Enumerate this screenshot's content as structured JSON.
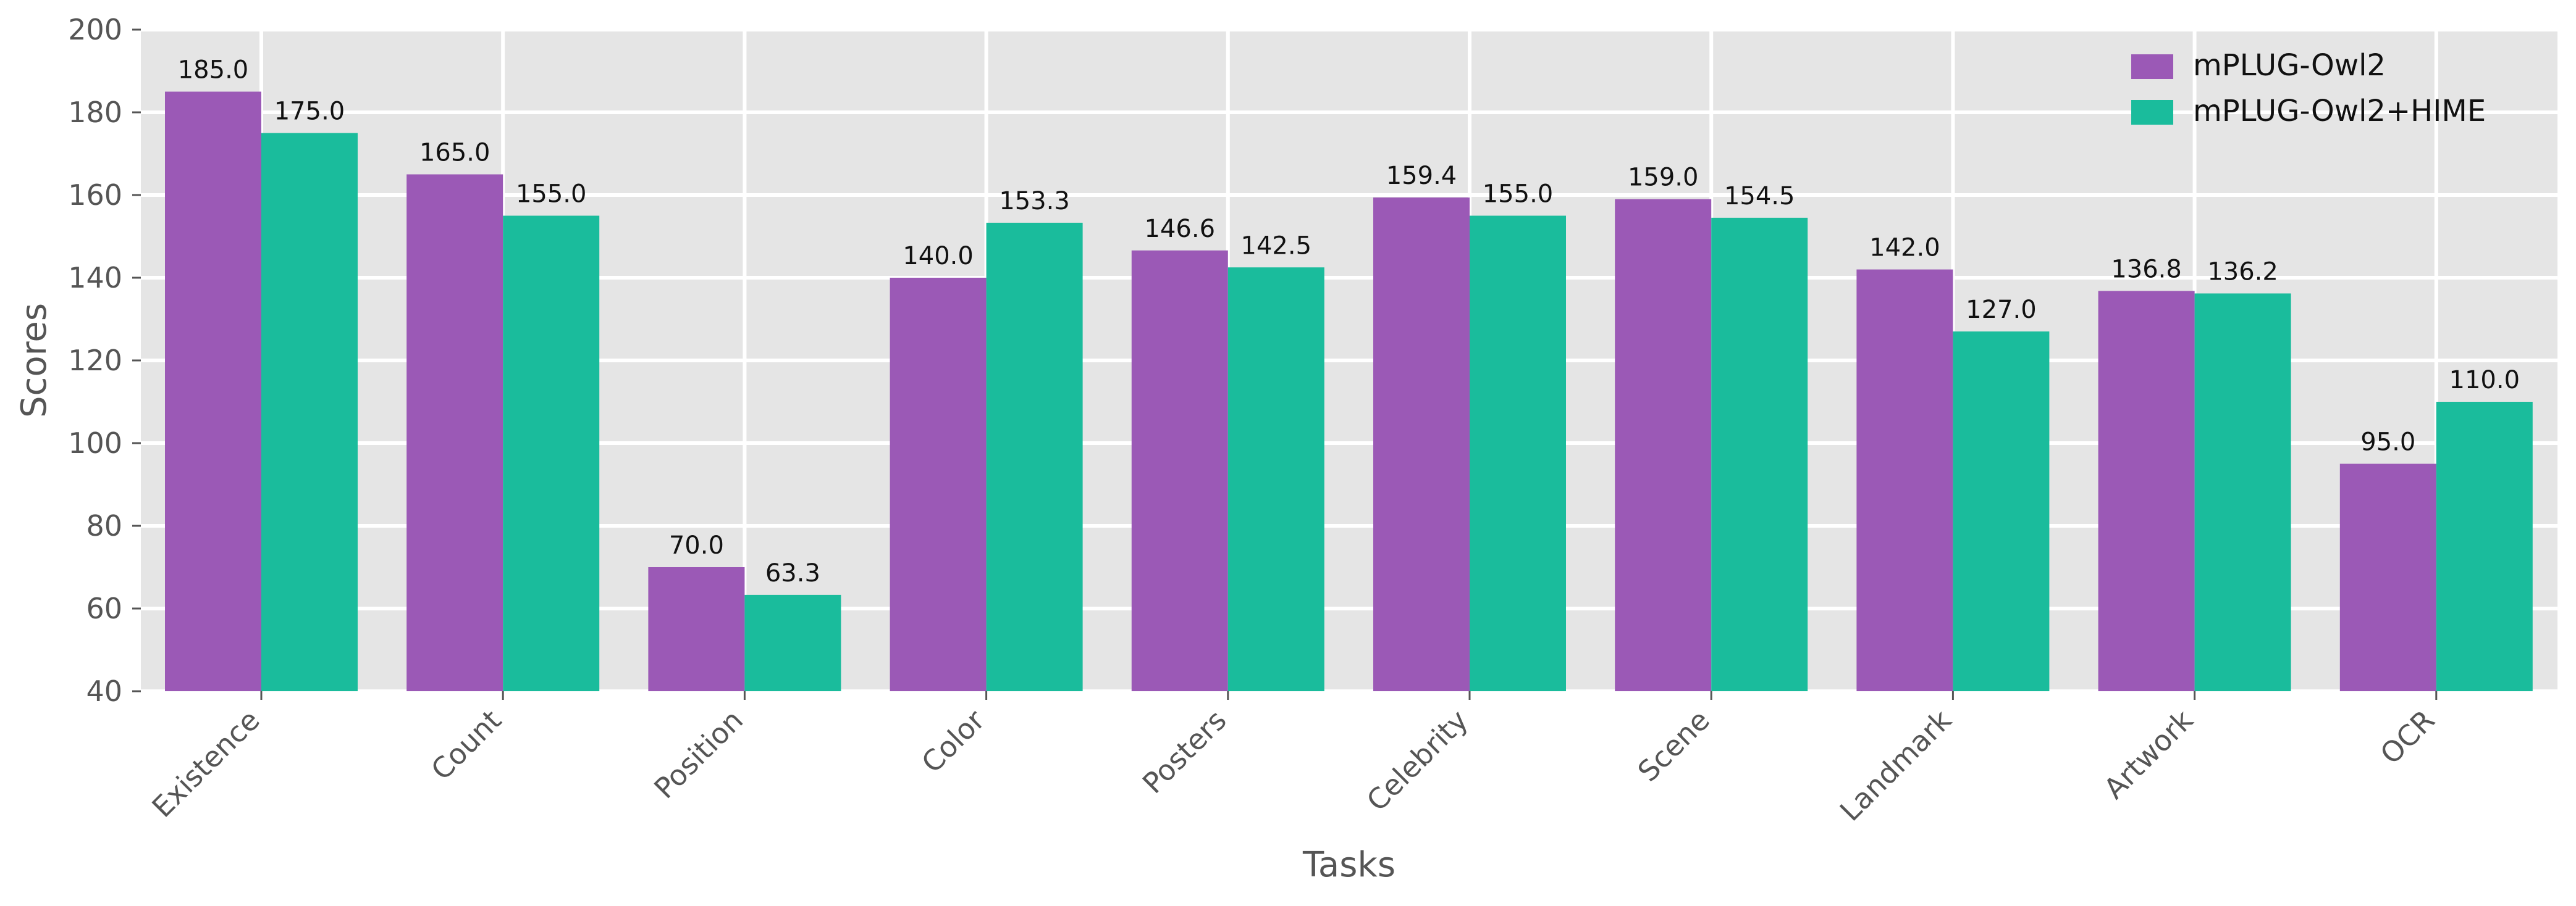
{
  "chart_data": {
    "type": "bar",
    "title": "",
    "xlabel": "Tasks",
    "ylabel": "Scores",
    "ylim": [
      40,
      200
    ],
    "yticks": [
      40,
      60,
      80,
      100,
      120,
      140,
      160,
      180,
      200
    ],
    "grid": true,
    "legend_position": "top-right",
    "categories": [
      "Existence",
      "Count",
      "Position",
      "Color",
      "Posters",
      "Celebrity",
      "Scene",
      "Landmark",
      "Artwork",
      "OCR"
    ],
    "series": [
      {
        "name": "mPLUG-Owl2",
        "color": "#9b59b6",
        "values": [
          185.0,
          165.0,
          70.0,
          140.0,
          146.6,
          159.4,
          159.0,
          142.0,
          136.8,
          95.0
        ]
      },
      {
        "name": "mPLUG-Owl2+HIME",
        "color": "#1abc9c",
        "values": [
          175.0,
          155.0,
          63.3,
          153.3,
          142.5,
          155.0,
          154.5,
          127.0,
          136.2,
          110.0
        ]
      }
    ],
    "colors": {
      "plot_background": "#e5e5e5",
      "grid": "#ffffff",
      "text": "#555555"
    }
  }
}
